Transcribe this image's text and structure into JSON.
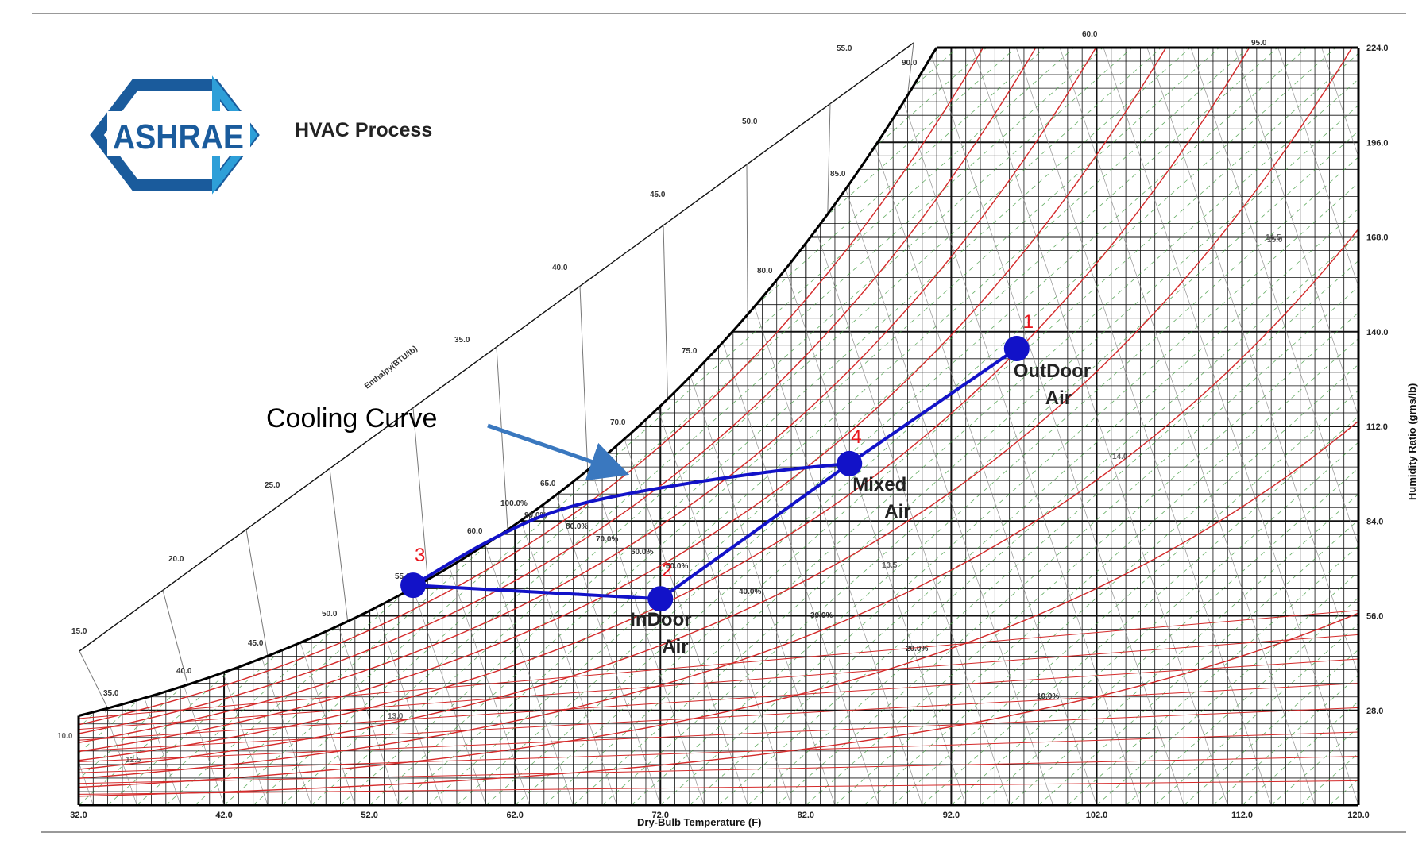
{
  "logo": {
    "text": "ASHRAE",
    "color": "#1a5b9c",
    "accent": "#2e9fd8"
  },
  "title": "HVAC Process",
  "chart_data": {
    "type": "scatter",
    "subtype": "psychrometric-chart",
    "xlabel": "Dry-Bulb Temperature (F)",
    "ylabel": "Humidity Ratio (grns/lb)",
    "enthalpy_label": "Enthalpy(BTU/lb)",
    "xlim": [
      32,
      120
    ],
    "ylim": [
      0,
      224
    ],
    "x_ticks": [
      "32.0",
      "42.0",
      "52.0",
      "62.0",
      "72.0",
      "82.0",
      "92.0",
      "102.0",
      "112.0",
      "120.0"
    ],
    "y_ticks": [
      "28.0",
      "56.0",
      "84.0",
      "112.0",
      "140.0",
      "168.0",
      "196.0",
      "224.0"
    ],
    "rh_labels": [
      "100.0%",
      "90.0%",
      "80.0%",
      "70.0%",
      "60.0%",
      "50.0%",
      "40.0%",
      "30.0%",
      "20.0%",
      "10.0%"
    ],
    "saturation_temp_labels": [
      "35.0",
      "40.0",
      "45.0",
      "50.0",
      "55.0",
      "60.0",
      "65.0",
      "70.0",
      "75.0",
      "80.0",
      "85.0",
      "90.0",
      "95.0"
    ],
    "enthalpy_ticks": [
      "15.0",
      "20.0",
      "25.0",
      "35.0",
      "40.0",
      "45.0",
      "50.0",
      "55.0",
      "60.0"
    ],
    "misc_labels": [
      "10.0",
      "12.5",
      "13.0",
      "13.5",
      "14.0",
      "14.5",
      "15.0"
    ],
    "points": [
      {
        "id": "1",
        "name": "OutDoor Air",
        "line1": "OutDoor",
        "line2": "Air",
        "x": 96.5,
        "y": 135
      },
      {
        "id": "4",
        "name": "Mixed Air",
        "line1": "Mixed",
        "line2": "Air",
        "x": 85,
        "y": 101
      },
      {
        "id": "2",
        "name": "InDoor Air",
        "line1": "InDoor",
        "line2": "Air",
        "x": 72,
        "y": 61
      },
      {
        "id": "3",
        "name": "",
        "line1": "",
        "line2": "",
        "x": 55,
        "y": 65
      }
    ],
    "process_lines": [
      [
        "1",
        "4"
      ],
      [
        "4",
        "2"
      ],
      [
        "2",
        "3"
      ]
    ],
    "cooling_curve": {
      "label": "Cooling Curve",
      "points": [
        [
          55,
          65
        ],
        [
          60,
          78
        ],
        [
          65,
          88
        ],
        [
          72,
          94
        ],
        [
          80,
          99
        ],
        [
          85,
          101
        ]
      ]
    },
    "colors": {
      "process": "#1212c8",
      "rh_curves": "#d42a2a",
      "grid": "#111111",
      "arrow": "#3a78bf"
    }
  }
}
